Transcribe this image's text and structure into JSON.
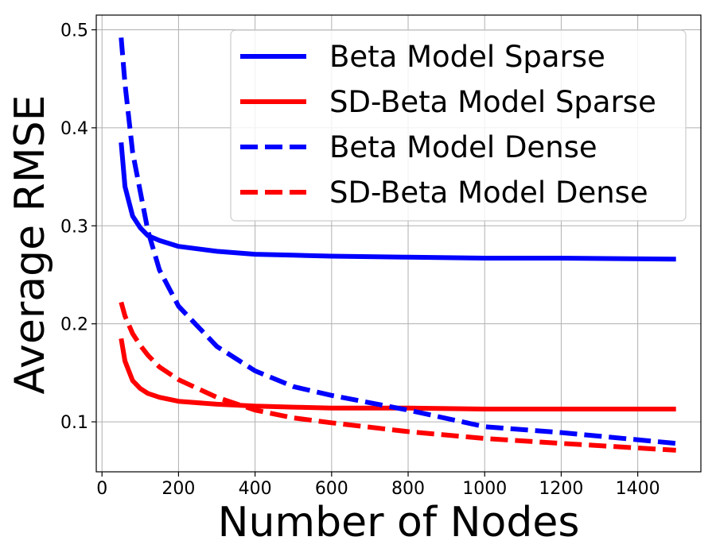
{
  "chart_data": {
    "type": "line",
    "title": "",
    "xlabel": "Number of Nodes",
    "ylabel": "Average RMSE",
    "xlim": [
      -15,
      1565
    ],
    "ylim": [
      0.049,
      0.515
    ],
    "x_ticks": [
      0,
      200,
      400,
      600,
      800,
      1000,
      1200,
      1400
    ],
    "y_ticks": [
      0.1,
      0.2,
      0.3,
      0.4,
      0.5
    ],
    "x_tick_labels": [
      "0",
      "200",
      "400",
      "600",
      "800",
      "1000",
      "1200",
      "1400"
    ],
    "y_tick_labels": [
      "0.1",
      "0.2",
      "0.3",
      "0.4",
      "0.5"
    ],
    "grid": true,
    "legend_position": "top-right",
    "series": [
      {
        "name": "Beta Model Sparse",
        "color": "#0000ff",
        "style": "solid",
        "x": [
          50,
          60,
          80,
          100,
          120,
          150,
          200,
          300,
          400,
          500,
          600,
          800,
          1000,
          1200,
          1500
        ],
        "y": [
          0.385,
          0.34,
          0.31,
          0.298,
          0.29,
          0.285,
          0.279,
          0.274,
          0.271,
          0.27,
          0.269,
          0.268,
          0.267,
          0.267,
          0.266
        ]
      },
      {
        "name": "SD-Beta Model Sparse",
        "color": "#ff0000",
        "style": "solid",
        "x": [
          50,
          60,
          80,
          100,
          120,
          150,
          200,
          300,
          400,
          500,
          600,
          800,
          1000,
          1200,
          1500
        ],
        "y": [
          0.185,
          0.162,
          0.142,
          0.134,
          0.129,
          0.125,
          0.121,
          0.118,
          0.116,
          0.115,
          0.114,
          0.114,
          0.113,
          0.113,
          0.113
        ]
      },
      {
        "name": "Beta Model Dense",
        "color": "#0000ff",
        "style": "dashed",
        "x": [
          50,
          60,
          80,
          100,
          120,
          150,
          200,
          300,
          400,
          500,
          600,
          800,
          1000,
          1200,
          1500
        ],
        "y": [
          0.492,
          0.445,
          0.375,
          0.335,
          0.295,
          0.255,
          0.218,
          0.177,
          0.152,
          0.136,
          0.127,
          0.112,
          0.095,
          0.089,
          0.078
        ]
      },
      {
        "name": "SD-Beta Model Dense",
        "color": "#ff0000",
        "style": "dashed",
        "x": [
          50,
          60,
          80,
          100,
          120,
          150,
          200,
          300,
          400,
          500,
          600,
          800,
          1000,
          1200,
          1500
        ],
        "y": [
          0.222,
          0.208,
          0.19,
          0.178,
          0.168,
          0.156,
          0.143,
          0.125,
          0.112,
          0.104,
          0.099,
          0.09,
          0.083,
          0.078,
          0.071
        ]
      }
    ]
  }
}
